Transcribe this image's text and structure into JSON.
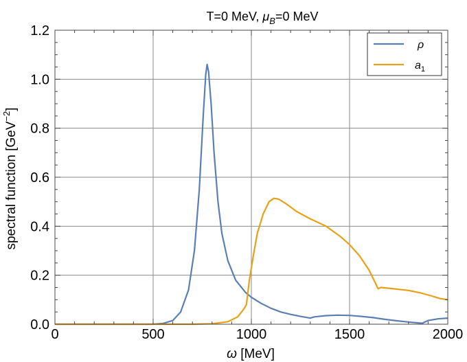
{
  "chart_data": {
    "type": "line",
    "title_main": "T=0 MeV, ",
    "title_mu": "μ",
    "title_mu_sub": "B",
    "title_tail": "=0 MeV",
    "xlabel_symbol": "ω",
    "xlabel_unit": " [MeV]",
    "ylabel_text": "spectral  function  [GeV",
    "ylabel_sup": "−2",
    "ylabel_close": "]",
    "xlim": [
      0,
      2000
    ],
    "ylim": [
      0,
      1.2
    ],
    "x_ticks": [
      0,
      500,
      1000,
      1500,
      2000
    ],
    "x_tick_labels": [
      "0",
      "500",
      "1000",
      "1500",
      "2000"
    ],
    "y_ticks": [
      0.0,
      0.2,
      0.4,
      0.6,
      0.8,
      1.0,
      1.2
    ],
    "y_tick_labels": [
      "0.0",
      "0.2",
      "0.4",
      "0.6",
      "0.8",
      "1.0",
      "1.2"
    ],
    "grid": true,
    "legend_position": "top-right",
    "series": [
      {
        "name": "ρ",
        "color": "#5b7fb4",
        "points": [
          [
            0,
            0
          ],
          [
            400,
            0
          ],
          [
            500,
            0.0
          ],
          [
            550,
            0.003
          ],
          [
            600,
            0.015
          ],
          [
            640,
            0.05
          ],
          [
            680,
            0.14
          ],
          [
            710,
            0.3
          ],
          [
            735,
            0.55
          ],
          [
            755,
            0.85
          ],
          [
            768,
            1.02
          ],
          [
            775,
            1.06
          ],
          [
            782,
            1.03
          ],
          [
            795,
            0.9
          ],
          [
            810,
            0.7
          ],
          [
            830,
            0.5
          ],
          [
            850,
            0.37
          ],
          [
            880,
            0.26
          ],
          [
            920,
            0.18
          ],
          [
            970,
            0.13
          ],
          [
            1000,
            0.11
          ],
          [
            1050,
            0.085
          ],
          [
            1100,
            0.065
          ],
          [
            1150,
            0.05
          ],
          [
            1200,
            0.04
          ],
          [
            1250,
            0.032
          ],
          [
            1300,
            0.025
          ],
          [
            1320,
            0.03
          ],
          [
            1380,
            0.035
          ],
          [
            1440,
            0.037
          ],
          [
            1500,
            0.036
          ],
          [
            1560,
            0.032
          ],
          [
            1620,
            0.027
          ],
          [
            1680,
            0.02
          ],
          [
            1740,
            0.014
          ],
          [
            1800,
            0.009
          ],
          [
            1840,
            0.006
          ],
          [
            1870,
            0.004
          ],
          [
            1900,
            0.015
          ],
          [
            1950,
            0.022
          ],
          [
            2000,
            0.025
          ]
        ]
      },
      {
        "name": "a",
        "name_sub": "1",
        "color": "#e6a117",
        "points": [
          [
            0,
            0
          ],
          [
            700,
            0
          ],
          [
            800,
            0.002
          ],
          [
            880,
            0.01
          ],
          [
            930,
            0.03
          ],
          [
            960,
            0.06
          ],
          [
            975,
            0.08
          ],
          [
            990,
            0.18
          ],
          [
            1010,
            0.28
          ],
          [
            1030,
            0.37
          ],
          [
            1060,
            0.45
          ],
          [
            1090,
            0.5
          ],
          [
            1115,
            0.514
          ],
          [
            1140,
            0.51
          ],
          [
            1180,
            0.49
          ],
          [
            1230,
            0.46
          ],
          [
            1300,
            0.43
          ],
          [
            1380,
            0.4
          ],
          [
            1450,
            0.36
          ],
          [
            1500,
            0.325
          ],
          [
            1550,
            0.28
          ],
          [
            1600,
            0.22
          ],
          [
            1630,
            0.17
          ],
          [
            1645,
            0.145
          ],
          [
            1660,
            0.15
          ],
          [
            1700,
            0.147
          ],
          [
            1800,
            0.138
          ],
          [
            1860,
            0.128
          ],
          [
            1920,
            0.115
          ],
          [
            1960,
            0.105
          ],
          [
            2000,
            0.1
          ]
        ]
      }
    ]
  }
}
